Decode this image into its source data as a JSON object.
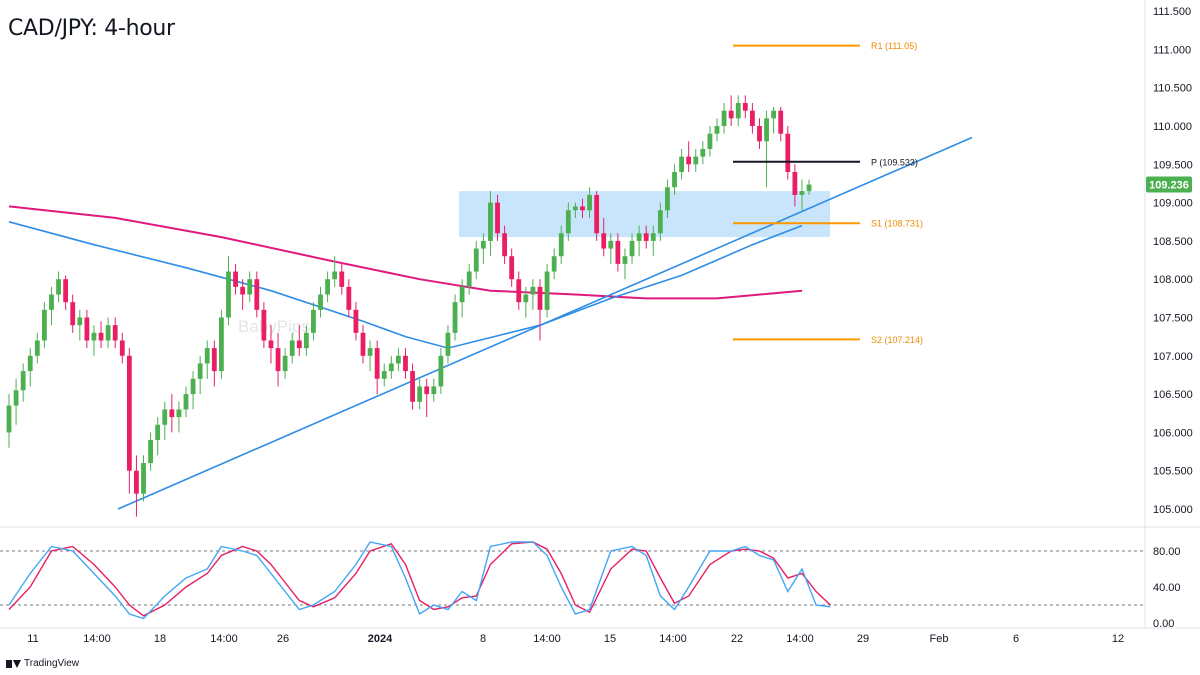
{
  "title": "CAD/JPY: 4-hour",
  "brand": "TradingView",
  "watermark": "BabyPips",
  "colors": {
    "up": "#26a69a",
    "up_body": "#4caf50",
    "down": "#e91e63",
    "ma_fast": "#2e8de6",
    "ma_slow": "#e0197d",
    "pivot_line": "#131722",
    "support_resistance": "#ff9800",
    "zone": "#bbdefb",
    "trendline": "#2e8de6",
    "last_price_bg": "#4caf50",
    "stoch_k": "#42a5f5",
    "stoch_d": "#e91e63"
  },
  "chart_data": {
    "type": "candlestick",
    "title": "CAD/JPY: 4-hour",
    "y_axis": {
      "ticks": [
        "111.500",
        "111.000",
        "110.500",
        "110.000",
        "109.500",
        "109.000",
        "108.500",
        "108.000",
        "107.500",
        "107.000",
        "106.500",
        "106.000",
        "105.500",
        "105.000"
      ],
      "range": [
        104.75,
        111.55
      ]
    },
    "x_axis": {
      "ticks": [
        "11",
        "14:00",
        "18",
        "14:00",
        "26",
        "2024",
        "8",
        "14:00",
        "15",
        "14:00",
        "22",
        "14:00",
        "29",
        "Feb",
        "6",
        "12"
      ],
      "bold_ticks": [
        "2024"
      ]
    },
    "last_price": "109.236",
    "pivot_levels": [
      {
        "label": "R1 (111.05)",
        "value": 111.05
      },
      {
        "label": "P (109.533)",
        "value": 109.533
      },
      {
        "label": "S1 (108.731)",
        "value": 108.731
      },
      {
        "label": "S2 (107.214)",
        "value": 107.214
      }
    ],
    "demand_zone": {
      "low": 108.55,
      "high": 109.15
    },
    "trendline": {
      "from": 105.0,
      "to": 109.85
    },
    "candles": [
      [
        106.0,
        106.5,
        105.8,
        106.35
      ],
      [
        106.35,
        106.7,
        106.1,
        106.55
      ],
      [
        106.55,
        106.9,
        106.4,
        106.8
      ],
      [
        106.8,
        107.1,
        106.6,
        107.0
      ],
      [
        107.0,
        107.3,
        106.9,
        107.2
      ],
      [
        107.2,
        107.7,
        107.1,
        107.6
      ],
      [
        107.6,
        107.9,
        107.4,
        107.8
      ],
      [
        107.8,
        108.1,
        107.7,
        108.0
      ],
      [
        108.0,
        108.05,
        107.6,
        107.7
      ],
      [
        107.7,
        107.8,
        107.3,
        107.4
      ],
      [
        107.4,
        107.6,
        107.2,
        107.5
      ],
      [
        107.5,
        107.6,
        107.1,
        107.2
      ],
      [
        107.2,
        107.4,
        107.0,
        107.3
      ],
      [
        107.3,
        107.45,
        107.1,
        107.2
      ],
      [
        107.2,
        107.5,
        107.1,
        107.4
      ],
      [
        107.4,
        107.5,
        107.1,
        107.2
      ],
      [
        107.2,
        107.3,
        106.9,
        107.0
      ],
      [
        107.0,
        107.1,
        105.2,
        105.5
      ],
      [
        105.5,
        105.7,
        104.9,
        105.2
      ],
      [
        105.2,
        105.7,
        105.1,
        105.6
      ],
      [
        105.6,
        106.0,
        105.5,
        105.9
      ],
      [
        105.9,
        106.2,
        105.7,
        106.1
      ],
      [
        106.1,
        106.4,
        105.9,
        106.3
      ],
      [
        106.3,
        106.5,
        106.0,
        106.2
      ],
      [
        106.2,
        106.4,
        106.0,
        106.3
      ],
      [
        106.3,
        106.6,
        106.2,
        106.5
      ],
      [
        106.5,
        106.8,
        106.3,
        106.7
      ],
      [
        106.7,
        107.0,
        106.5,
        106.9
      ],
      [
        106.9,
        107.2,
        106.7,
        107.1
      ],
      [
        107.1,
        107.2,
        106.6,
        106.8
      ],
      [
        106.8,
        107.6,
        106.7,
        107.5
      ],
      [
        107.5,
        108.3,
        107.4,
        108.1
      ],
      [
        108.1,
        108.2,
        107.8,
        107.9
      ],
      [
        107.9,
        108.0,
        107.6,
        107.8
      ],
      [
        107.8,
        108.1,
        107.7,
        108.0
      ],
      [
        108.0,
        108.1,
        107.5,
        107.6
      ],
      [
        107.6,
        107.7,
        107.1,
        107.2
      ],
      [
        107.2,
        107.4,
        106.9,
        107.1
      ],
      [
        107.1,
        107.3,
        106.6,
        106.8
      ],
      [
        106.8,
        107.1,
        106.7,
        107.0
      ],
      [
        107.0,
        107.3,
        106.9,
        107.2
      ],
      [
        107.2,
        107.4,
        107.0,
        107.1
      ],
      [
        107.1,
        107.4,
        107.0,
        107.3
      ],
      [
        107.3,
        107.7,
        107.2,
        107.6
      ],
      [
        107.6,
        107.9,
        107.5,
        107.8
      ],
      [
        107.8,
        108.1,
        107.7,
        108.0
      ],
      [
        108.0,
        108.3,
        107.9,
        108.1
      ],
      [
        108.1,
        108.2,
        107.8,
        107.9
      ],
      [
        107.9,
        108.0,
        107.5,
        107.6
      ],
      [
        107.6,
        107.7,
        107.2,
        107.3
      ],
      [
        107.3,
        107.4,
        106.9,
        107.0
      ],
      [
        107.0,
        107.2,
        106.8,
        107.1
      ],
      [
        107.1,
        107.2,
        106.5,
        106.7
      ],
      [
        106.7,
        106.9,
        106.6,
        106.8
      ],
      [
        106.8,
        107.0,
        106.7,
        106.9
      ],
      [
        106.9,
        107.1,
        106.8,
        107.0
      ],
      [
        107.0,
        107.1,
        106.7,
        106.8
      ],
      [
        106.8,
        106.9,
        106.3,
        106.4
      ],
      [
        106.4,
        106.7,
        106.3,
        106.6
      ],
      [
        106.6,
        106.7,
        106.2,
        106.5
      ],
      [
        106.5,
        106.7,
        106.4,
        106.6
      ],
      [
        106.6,
        107.1,
        106.5,
        107.0
      ],
      [
        107.0,
        107.4,
        106.9,
        107.3
      ],
      [
        107.3,
        107.8,
        107.2,
        107.7
      ],
      [
        107.7,
        108.0,
        107.5,
        107.9
      ],
      [
        107.9,
        108.2,
        107.8,
        108.1
      ],
      [
        108.1,
        108.5,
        108.0,
        108.4
      ],
      [
        108.4,
        108.6,
        108.2,
        108.5
      ],
      [
        108.5,
        109.15,
        108.3,
        109.0
      ],
      [
        109.0,
        109.1,
        108.5,
        108.6
      ],
      [
        108.6,
        108.7,
        108.2,
        108.3
      ],
      [
        108.3,
        108.4,
        107.9,
        108.0
      ],
      [
        108.0,
        108.1,
        107.6,
        107.7
      ],
      [
        107.7,
        107.9,
        107.5,
        107.8
      ],
      [
        107.8,
        108.0,
        107.6,
        107.9
      ],
      [
        107.9,
        108.0,
        107.2,
        107.6
      ],
      [
        107.6,
        108.2,
        107.5,
        108.1
      ],
      [
        108.1,
        108.4,
        108.0,
        108.3
      ],
      [
        108.3,
        108.7,
        108.2,
        108.6
      ],
      [
        108.6,
        109.0,
        108.5,
        108.9
      ],
      [
        108.9,
        109.0,
        108.8,
        108.95
      ],
      [
        108.95,
        109.05,
        108.8,
        108.9
      ],
      [
        108.9,
        109.2,
        108.8,
        109.1
      ],
      [
        109.1,
        109.15,
        108.5,
        108.6
      ],
      [
        108.6,
        108.8,
        108.3,
        108.4
      ],
      [
        108.4,
        108.6,
        108.2,
        108.5
      ],
      [
        108.5,
        108.6,
        108.1,
        108.2
      ],
      [
        108.2,
        108.4,
        108.0,
        108.3
      ],
      [
        108.3,
        108.6,
        108.2,
        108.5
      ],
      [
        108.5,
        108.7,
        108.3,
        108.6
      ],
      [
        108.6,
        108.7,
        108.4,
        108.5
      ],
      [
        108.5,
        108.7,
        108.3,
        108.6
      ],
      [
        108.6,
        109.0,
        108.5,
        108.9
      ],
      [
        108.9,
        109.3,
        108.8,
        109.2
      ],
      [
        109.2,
        109.5,
        109.1,
        109.4
      ],
      [
        109.4,
        109.7,
        109.3,
        109.6
      ],
      [
        109.6,
        109.8,
        109.4,
        109.5
      ],
      [
        109.5,
        109.7,
        109.4,
        109.6
      ],
      [
        109.6,
        109.8,
        109.5,
        109.7
      ],
      [
        109.7,
        110.0,
        109.6,
        109.9
      ],
      [
        109.9,
        110.1,
        109.8,
        110.0
      ],
      [
        110.0,
        110.3,
        109.9,
        110.2
      ],
      [
        110.2,
        110.4,
        110.0,
        110.1
      ],
      [
        110.1,
        110.4,
        110.0,
        110.3
      ],
      [
        110.3,
        110.4,
        110.1,
        110.2
      ],
      [
        110.2,
        110.3,
        109.9,
        110.0
      ],
      [
        110.0,
        110.1,
        109.7,
        109.8
      ],
      [
        109.8,
        110.2,
        109.2,
        110.1
      ],
      [
        110.1,
        110.25,
        109.9,
        110.2
      ],
      [
        110.2,
        110.25,
        109.8,
        109.9
      ],
      [
        109.9,
        110.0,
        109.3,
        109.4
      ],
      [
        109.4,
        109.5,
        108.95,
        109.1
      ],
      [
        109.1,
        109.3,
        108.9,
        109.15
      ],
      [
        109.15,
        109.3,
        109.1,
        109.236
      ]
    ],
    "ma_fast": [
      [
        0,
        108.75
      ],
      [
        12,
        108.45
      ],
      [
        25,
        108.15
      ],
      [
        37,
        107.85
      ],
      [
        50,
        107.45
      ],
      [
        56,
        107.25
      ],
      [
        62,
        107.1
      ],
      [
        75,
        107.4
      ],
      [
        85,
        107.75
      ],
      [
        95,
        108.05
      ],
      [
        105,
        108.45
      ],
      [
        112,
        108.7
      ]
    ],
    "ma_slow": [
      [
        0,
        108.95
      ],
      [
        15,
        108.8
      ],
      [
        30,
        108.55
      ],
      [
        45,
        108.25
      ],
      [
        58,
        108.0
      ],
      [
        68,
        107.85
      ],
      [
        80,
        107.8
      ],
      [
        90,
        107.75
      ],
      [
        100,
        107.75
      ],
      [
        112,
        107.85
      ]
    ],
    "stoch_ticks": [
      "80.00",
      "40.00",
      "0.00"
    ],
    "stoch_levels": [
      80,
      20
    ],
    "stochastic_k": [
      [
        0,
        20
      ],
      [
        3,
        55
      ],
      [
        6,
        85
      ],
      [
        9,
        80
      ],
      [
        12,
        55
      ],
      [
        15,
        30
      ],
      [
        17,
        10
      ],
      [
        19,
        5
      ],
      [
        22,
        30
      ],
      [
        25,
        50
      ],
      [
        28,
        60
      ],
      [
        30,
        85
      ],
      [
        33,
        80
      ],
      [
        35,
        75
      ],
      [
        37,
        55
      ],
      [
        39,
        35
      ],
      [
        41,
        15
      ],
      [
        43,
        20
      ],
      [
        46,
        35
      ],
      [
        49,
        65
      ],
      [
        51,
        90
      ],
      [
        54,
        85
      ],
      [
        56,
        50
      ],
      [
        58,
        10
      ],
      [
        60,
        20
      ],
      [
        62,
        15
      ],
      [
        64,
        35
      ],
      [
        66,
        25
      ],
      [
        68,
        85
      ],
      [
        71,
        90
      ],
      [
        74,
        90
      ],
      [
        76,
        75
      ],
      [
        78,
        40
      ],
      [
        80,
        10
      ],
      [
        82,
        15
      ],
      [
        85,
        80
      ],
      [
        88,
        85
      ],
      [
        90,
        75
      ],
      [
        92,
        30
      ],
      [
        94,
        15
      ],
      [
        96,
        40
      ],
      [
        99,
        80
      ],
      [
        102,
        80
      ],
      [
        104,
        85
      ],
      [
        106,
        75
      ],
      [
        108,
        70
      ],
      [
        110,
        35
      ],
      [
        112,
        60
      ],
      [
        114,
        20
      ],
      [
        116,
        18
      ]
    ],
    "stochastic_d": [
      [
        0,
        15
      ],
      [
        3,
        40
      ],
      [
        6,
        80
      ],
      [
        9,
        85
      ],
      [
        12,
        65
      ],
      [
        15,
        40
      ],
      [
        17,
        20
      ],
      [
        19,
        8
      ],
      [
        22,
        20
      ],
      [
        25,
        40
      ],
      [
        28,
        55
      ],
      [
        30,
        75
      ],
      [
        33,
        85
      ],
      [
        35,
        80
      ],
      [
        37,
        65
      ],
      [
        39,
        45
      ],
      [
        41,
        25
      ],
      [
        43,
        18
      ],
      [
        46,
        28
      ],
      [
        49,
        55
      ],
      [
        51,
        80
      ],
      [
        54,
        88
      ],
      [
        56,
        65
      ],
      [
        58,
        25
      ],
      [
        60,
        15
      ],
      [
        62,
        18
      ],
      [
        64,
        28
      ],
      [
        66,
        30
      ],
      [
        68,
        65
      ],
      [
        71,
        88
      ],
      [
        74,
        90
      ],
      [
        76,
        82
      ],
      [
        78,
        55
      ],
      [
        80,
        20
      ],
      [
        82,
        12
      ],
      [
        85,
        60
      ],
      [
        88,
        82
      ],
      [
        90,
        80
      ],
      [
        92,
        50
      ],
      [
        94,
        22
      ],
      [
        96,
        30
      ],
      [
        99,
        65
      ],
      [
        102,
        80
      ],
      [
        104,
        82
      ],
      [
        106,
        80
      ],
      [
        108,
        72
      ],
      [
        110,
        50
      ],
      [
        112,
        55
      ],
      [
        114,
        35
      ],
      [
        116,
        20
      ]
    ]
  }
}
